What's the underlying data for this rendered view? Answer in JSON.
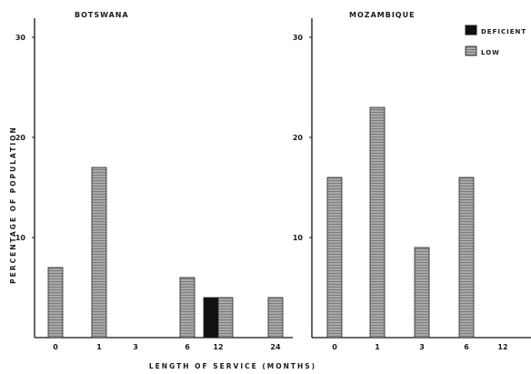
{
  "chart_data": {
    "type": "bar",
    "ylabel": "PERCENTAGE OF POPULATION",
    "xlabel": "LENGTH OF SERVICE (MONTHS)",
    "ylim": [
      0,
      32
    ],
    "yticks": [
      10,
      20,
      30
    ],
    "grid": false,
    "legend_placement": "top-right",
    "legend": [
      {
        "key": "deficient",
        "label": "DEFICIENT",
        "color": "#111111"
      },
      {
        "key": "low",
        "label": "LOW",
        "color": "#9a9a9a"
      }
    ],
    "panels": [
      {
        "title": "BOTSWANA",
        "categories": [
          "0",
          "1",
          "3",
          "6",
          "12",
          "24"
        ],
        "series": [
          {
            "key": "deficient",
            "values": [
              0,
              0,
              0,
              0,
              4,
              0
            ]
          },
          {
            "key": "low",
            "values": [
              7,
              17,
              0,
              6,
              4,
              4
            ]
          }
        ]
      },
      {
        "title": "MOZAMBIQUE",
        "categories": [
          "0",
          "1",
          "3",
          "6",
          "12"
        ],
        "series": [
          {
            "key": "deficient",
            "values": [
              0,
              0,
              0,
              0,
              0
            ]
          },
          {
            "key": "low",
            "values": [
              16,
              23,
              9,
              16,
              0
            ]
          }
        ]
      }
    ]
  }
}
